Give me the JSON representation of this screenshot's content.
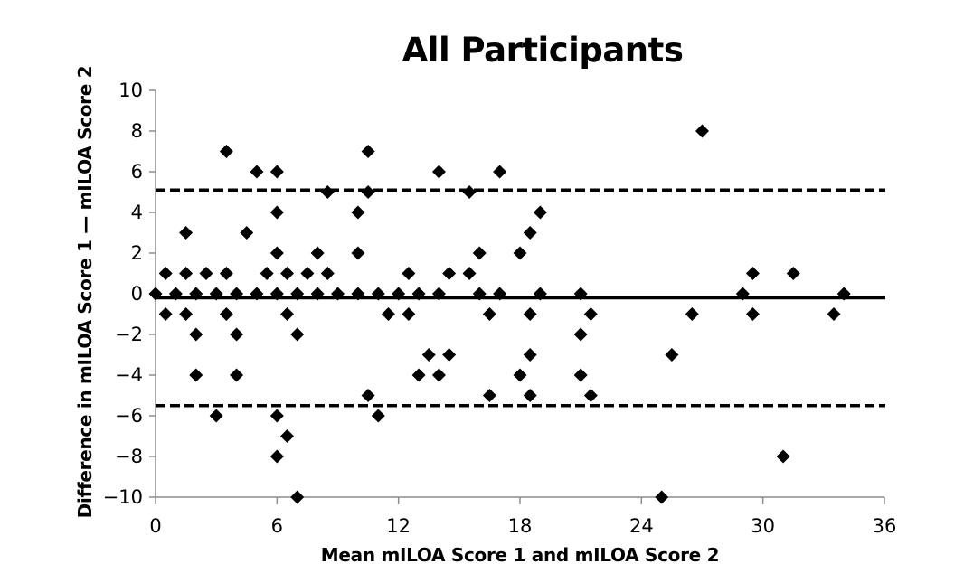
{
  "chart_data": {
    "type": "scatter",
    "title": "All Participants",
    "xlabel": "Mean mILOA Score 1 and mILOA Score 2",
    "ylabel": "Difference in mILOA Score 1 — mILOA Score 2",
    "xlim": [
      0,
      36
    ],
    "ylim": [
      -10,
      10
    ],
    "x_ticks": [
      0,
      6,
      12,
      18,
      24,
      30,
      36
    ],
    "y_ticks": [
      10,
      8,
      6,
      4,
      2,
      0,
      -2,
      -4,
      -6,
      -8,
      -10
    ],
    "y_tick_labels": [
      "10",
      "8",
      "6",
      "4",
      "2",
      "0",
      "−2",
      "−4",
      "−6",
      "−8",
      "−10"
    ],
    "grid": false,
    "legend": null,
    "marker": "diamond",
    "reference_lines": [
      {
        "name": "upper-limit-of-agreement",
        "y": 5.1,
        "style": "dashed"
      },
      {
        "name": "mean-difference",
        "y": -0.2,
        "style": "solid"
      },
      {
        "name": "lower-limit-of-agreement",
        "y": -5.5,
        "style": "dashed"
      }
    ],
    "series": [
      {
        "name": "Participants",
        "points": [
          [
            0,
            0
          ],
          [
            1,
            0
          ],
          [
            2,
            0
          ],
          [
            3,
            0
          ],
          [
            4,
            0
          ],
          [
            5,
            0
          ],
          [
            6,
            0
          ],
          [
            7,
            0
          ],
          [
            8,
            0
          ],
          [
            9,
            0
          ],
          [
            10,
            0
          ],
          [
            11,
            0
          ],
          [
            12,
            0
          ],
          [
            13,
            0
          ],
          [
            14,
            0
          ],
          [
            16,
            0
          ],
          [
            17,
            0
          ],
          [
            19,
            0
          ],
          [
            21,
            0
          ],
          [
            29,
            0
          ],
          [
            34,
            0
          ],
          [
            0.5,
            1
          ],
          [
            1.5,
            1
          ],
          [
            2.5,
            1
          ],
          [
            3.5,
            1
          ],
          [
            5.5,
            1
          ],
          [
            6.5,
            1
          ],
          [
            7.5,
            1
          ],
          [
            8.5,
            1
          ],
          [
            12.5,
            1
          ],
          [
            14.5,
            1
          ],
          [
            15.5,
            1
          ],
          [
            29.5,
            1
          ],
          [
            31.5,
            1
          ],
          [
            0.5,
            -1
          ],
          [
            1.5,
            -1
          ],
          [
            3.5,
            -1
          ],
          [
            6.5,
            -1
          ],
          [
            11.5,
            -1
          ],
          [
            12.5,
            -1
          ],
          [
            16.5,
            -1
          ],
          [
            18.5,
            -1
          ],
          [
            21.5,
            -1
          ],
          [
            26.5,
            -1
          ],
          [
            29.5,
            -1
          ],
          [
            33.5,
            -1
          ],
          [
            6,
            2
          ],
          [
            8,
            2
          ],
          [
            10,
            2
          ],
          [
            16,
            2
          ],
          [
            18,
            2
          ],
          [
            1.5,
            3
          ],
          [
            4.5,
            3
          ],
          [
            18.5,
            3
          ],
          [
            6,
            4
          ],
          [
            10,
            4
          ],
          [
            19,
            4
          ],
          [
            8.5,
            5
          ],
          [
            10.5,
            5
          ],
          [
            15.5,
            5
          ],
          [
            5,
            6
          ],
          [
            6,
            6
          ],
          [
            14,
            6
          ],
          [
            17,
            6
          ],
          [
            3.5,
            7
          ],
          [
            10.5,
            7
          ],
          [
            27,
            8
          ],
          [
            2,
            -2
          ],
          [
            4,
            -2
          ],
          [
            7,
            -2
          ],
          [
            21,
            -2
          ],
          [
            13.5,
            -3
          ],
          [
            14.5,
            -3
          ],
          [
            18.5,
            -3
          ],
          [
            25.5,
            -3
          ],
          [
            2,
            -4
          ],
          [
            4,
            -4
          ],
          [
            13,
            -4
          ],
          [
            14,
            -4
          ],
          [
            18,
            -4
          ],
          [
            21,
            -4
          ],
          [
            10.5,
            -5
          ],
          [
            16.5,
            -5
          ],
          [
            18.5,
            -5
          ],
          [
            21.5,
            -5
          ],
          [
            3,
            -6
          ],
          [
            6,
            -6
          ],
          [
            11,
            -6
          ],
          [
            6.5,
            -7
          ],
          [
            6,
            -8
          ],
          [
            31,
            -8
          ],
          [
            7,
            -10
          ],
          [
            25,
            -10
          ]
        ]
      }
    ]
  },
  "colors": {
    "marker": "#000000",
    "axis": "#8c8c8c",
    "lines": "#000000",
    "background": "#ffffff"
  }
}
